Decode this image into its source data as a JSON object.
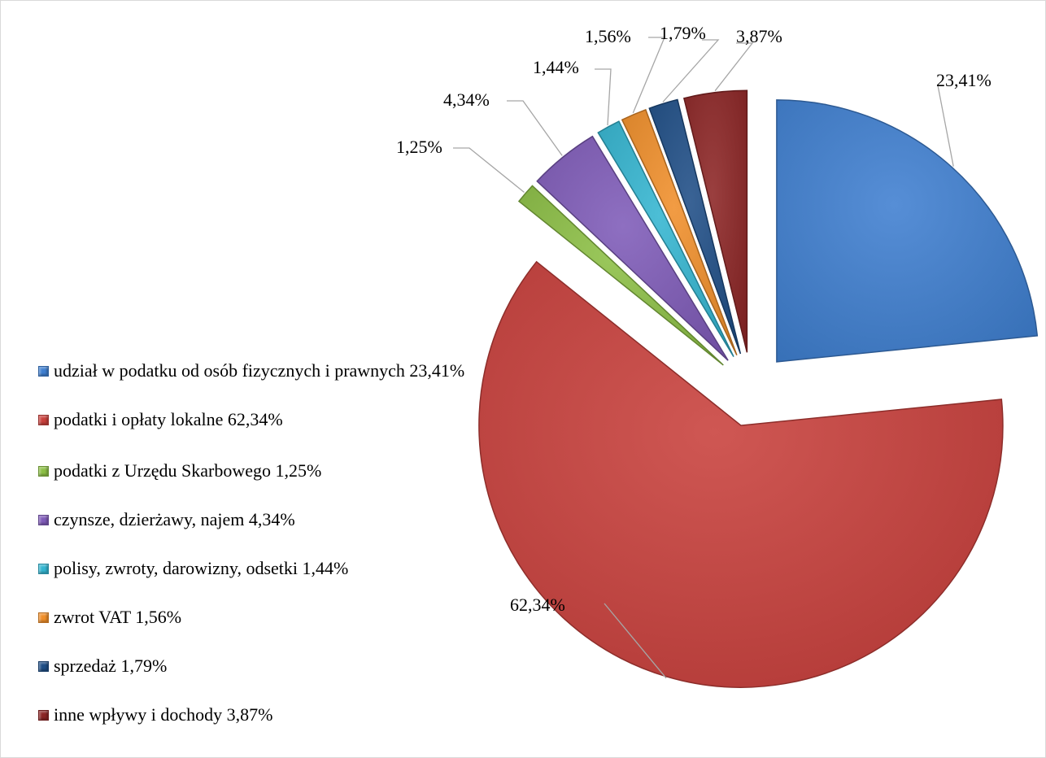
{
  "chart_data": {
    "type": "pie",
    "title": "",
    "slices": [
      {
        "label": "udział w podatku od osób fizycznych i prawnych",
        "value": 23.41,
        "data_label": "23,41%",
        "legend_text": "udział w podatku od osób fizycznych i prawnych 23,41%",
        "color": "#3f7fd0"
      },
      {
        "label": "podatki i opłaty lokalne",
        "value": 62.34,
        "data_label": "62,34%",
        "legend_text": "podatki i opłaty lokalne 62,34%",
        "color": "#c9403c"
      },
      {
        "label": "podatki z Urzędu Skarbowego",
        "value": 1.25,
        "data_label": "1,25%",
        "legend_text": "podatki z Urzędu Skarbowego 1,25%",
        "color": "#8cbf45"
      },
      {
        "label": "czynsze, dzierżawy, najem",
        "value": 4.34,
        "data_label": "4,34%",
        "legend_text": "czynsze, dzierżawy, najem 4,34%",
        "color": "#7f5bb8"
      },
      {
        "label": "polisy, zwroty, darowizny, odsetki",
        "value": 1.44,
        "data_label": "1,44%",
        "legend_text": "polisy, zwroty, darowizny, odsetki 1,44%",
        "color": "#34b5d0"
      },
      {
        "label": "zwrot VAT",
        "value": 1.56,
        "data_label": "1,56%",
        "legend_text": "zwrot VAT 1,56%",
        "color": "#f08f2a"
      },
      {
        "label": "sprzedaż",
        "value": 1.79,
        "data_label": "1,79%",
        "legend_text": "sprzedaż 1,79%",
        "color": "#1f4e86"
      },
      {
        "label": "inne wpływy i dochody",
        "value": 3.87,
        "data_label": "3,87%",
        "legend_text": "inne wpływy i dochody 3,87%",
        "color": "#8c2525"
      }
    ],
    "legend_position": "left",
    "exploded": true
  }
}
